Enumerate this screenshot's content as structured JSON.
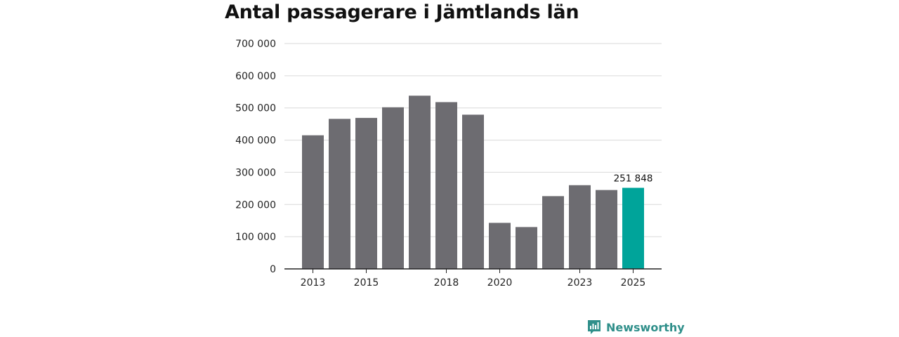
{
  "chart_data": {
    "type": "bar",
    "title": "Antal passagerare i Jämtlands län",
    "xlabel": "",
    "ylabel": "",
    "categories": [
      "2013",
      "2014",
      "2015",
      "2016",
      "2017",
      "2018",
      "2019",
      "2020",
      "2021",
      "2022",
      "2023",
      "2024",
      "2025"
    ],
    "x_tick_labels": [
      "2013",
      "",
      "2015",
      "",
      "",
      "2018",
      "",
      "2020",
      "",
      "",
      "2023",
      "",
      "2025"
    ],
    "values": [
      415000,
      466000,
      469000,
      502000,
      538000,
      518000,
      479000,
      143000,
      130000,
      226000,
      260000,
      245000,
      251848
    ],
    "ylim": [
      0,
      700000
    ],
    "y_ticks": [
      0,
      100000,
      200000,
      300000,
      400000,
      500000,
      600000,
      700000
    ],
    "y_tick_labels": [
      "0",
      "100 000",
      "200 000",
      "300 000",
      "400 000",
      "500 000",
      "600 000",
      "700 000"
    ],
    "grid": true,
    "highlight_index": 12,
    "highlight_label": "251 848",
    "colors": {
      "bar": "#6d6c71",
      "highlight": "#00a49a",
      "grid": "#d9d9d9",
      "axis": "#222222"
    }
  },
  "brand": {
    "name": "Newsworthy",
    "color": "#2f8f8a"
  }
}
